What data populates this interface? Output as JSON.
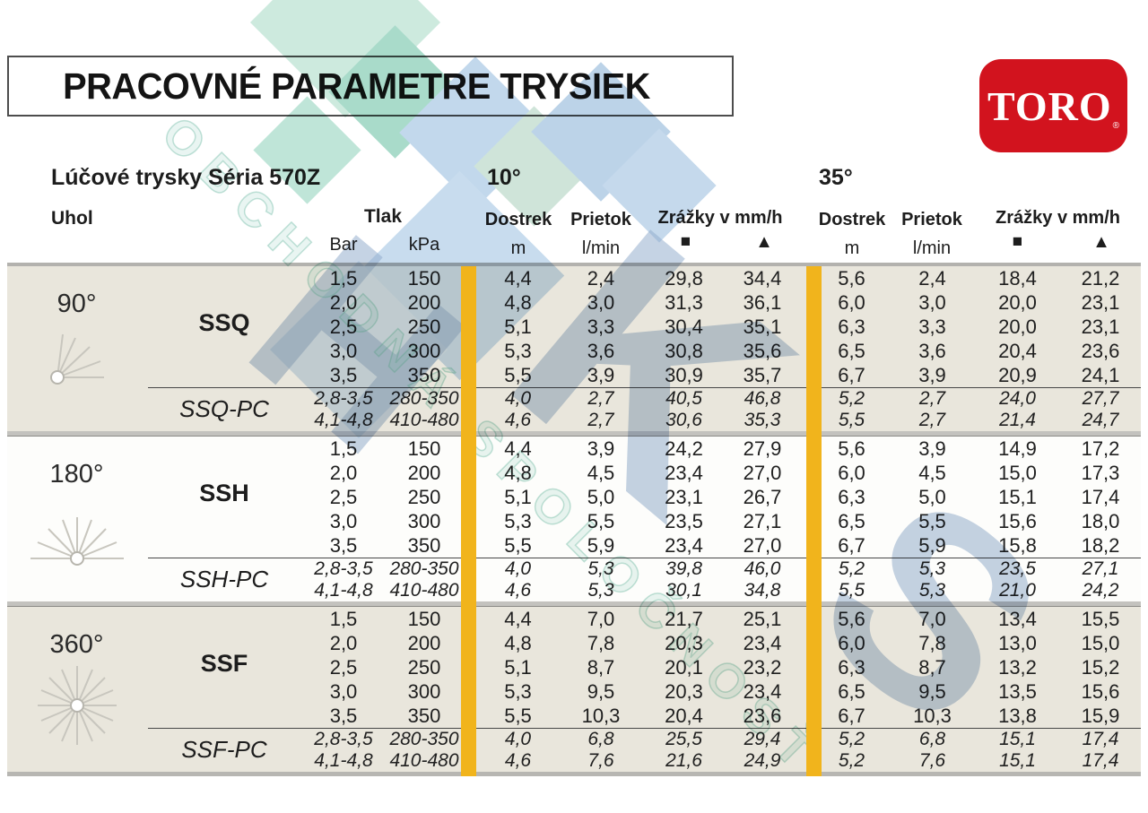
{
  "title": "PRACOVNÉ PARAMETRE TRYSIEK",
  "logo": {
    "text": "TORO",
    "registered": "®",
    "bg_color": "#d2131e"
  },
  "subtitle": "Lúčové trysky Séria 570Z",
  "header": {
    "uhol": "Uhol",
    "tlak": "Tlak",
    "bar": "Bar",
    "kpa": "kPa",
    "group10": "10°",
    "group35": "35°",
    "dostrek": "Dostrek",
    "prietok": "Prietok",
    "zrazky": "Zrážky v mm/h",
    "m": "m",
    "lmin": "l/min",
    "square_symbol": "■",
    "triangle_symbol": "▲"
  },
  "colors": {
    "stripe": "#f1b41c",
    "block_beige": "#e9e6dc",
    "block_white": "#fdfdfb",
    "logo_red": "#d2131e"
  },
  "watermark": {
    "diagonal_text": "OBCHODNÁ SPOLOČNOSŤ",
    "big_letters": [
      "H",
      "K",
      "S"
    ]
  },
  "blocks": [
    {
      "angle": "90°",
      "icon": "spray-90",
      "name": "SSQ",
      "pc_name": "SSQ-PC",
      "rows": [
        {
          "bar": "1,5",
          "kpa": "150",
          "d10": "4,4",
          "p10": "2,4",
          "s10": "29,8",
          "t10": "34,4",
          "d35": "5,6",
          "p35": "2,4",
          "s35": "18,4",
          "t35": "21,2"
        },
        {
          "bar": "2,0",
          "kpa": "200",
          "d10": "4,8",
          "p10": "3,0",
          "s10": "31,3",
          "t10": "36,1",
          "d35": "6,0",
          "p35": "3,0",
          "s35": "20,0",
          "t35": "23,1"
        },
        {
          "bar": "2,5",
          "kpa": "250",
          "d10": "5,1",
          "p10": "3,3",
          "s10": "30,4",
          "t10": "35,1",
          "d35": "6,3",
          "p35": "3,3",
          "s35": "20,0",
          "t35": "23,1"
        },
        {
          "bar": "3,0",
          "kpa": "300",
          "d10": "5,3",
          "p10": "3,6",
          "s10": "30,8",
          "t10": "35,6",
          "d35": "6,5",
          "p35": "3,6",
          "s35": "20,4",
          "t35": "23,6"
        },
        {
          "bar": "3,5",
          "kpa": "350",
          "d10": "5,5",
          "p10": "3,9",
          "s10": "30,9",
          "t10": "35,7",
          "d35": "6,7",
          "p35": "3,9",
          "s35": "20,9",
          "t35": "24,1"
        }
      ],
      "pc_rows": [
        {
          "bar": "2,8-3,5",
          "kpa": "280-350",
          "d10": "4,0",
          "p10": "2,7",
          "s10": "40,5",
          "t10": "46,8",
          "d35": "5,2",
          "p35": "2,7",
          "s35": "24,0",
          "t35": "27,7"
        },
        {
          "bar": "4,1-4,8",
          "kpa": "410-480",
          "d10": "4,6",
          "p10": "2,7",
          "s10": "30,6",
          "t10": "35,3",
          "d35": "5,5",
          "p35": "2,7",
          "s35": "21,4",
          "t35": "24,7"
        }
      ]
    },
    {
      "angle": "180°",
      "icon": "spray-180",
      "name": "SSH",
      "pc_name": "SSH-PC",
      "rows": [
        {
          "bar": "1,5",
          "kpa": "150",
          "d10": "4,4",
          "p10": "3,9",
          "s10": "24,2",
          "t10": "27,9",
          "d35": "5,6",
          "p35": "3,9",
          "s35": "14,9",
          "t35": "17,2"
        },
        {
          "bar": "2,0",
          "kpa": "200",
          "d10": "4,8",
          "p10": "4,5",
          "s10": "23,4",
          "t10": "27,0",
          "d35": "6,0",
          "p35": "4,5",
          "s35": "15,0",
          "t35": "17,3"
        },
        {
          "bar": "2,5",
          "kpa": "250",
          "d10": "5,1",
          "p10": "5,0",
          "s10": "23,1",
          "t10": "26,7",
          "d35": "6,3",
          "p35": "5,0",
          "s35": "15,1",
          "t35": "17,4"
        },
        {
          "bar": "3,0",
          "kpa": "300",
          "d10": "5,3",
          "p10": "5,5",
          "s10": "23,5",
          "t10": "27,1",
          "d35": "6,5",
          "p35": "5,5",
          "s35": "15,6",
          "t35": "18,0"
        },
        {
          "bar": "3,5",
          "kpa": "350",
          "d10": "5,5",
          "p10": "5,9",
          "s10": "23,4",
          "t10": "27,0",
          "d35": "6,7",
          "p35": "5,9",
          "s35": "15,8",
          "t35": "18,2"
        }
      ],
      "pc_rows": [
        {
          "bar": "2,8-3,5",
          "kpa": "280-350",
          "d10": "4,0",
          "p10": "5,3",
          "s10": "39,8",
          "t10": "46,0",
          "d35": "5,2",
          "p35": "5,3",
          "s35": "23,5",
          "t35": "27,1"
        },
        {
          "bar": "4,1-4,8",
          "kpa": "410-480",
          "d10": "4,6",
          "p10": "5,3",
          "s10": "30,1",
          "t10": "34,8",
          "d35": "5,5",
          "p35": "5,3",
          "s35": "21,0",
          "t35": "24,2"
        }
      ]
    },
    {
      "angle": "360°",
      "icon": "spray-360",
      "name": "SSF",
      "pc_name": "SSF-PC",
      "rows": [
        {
          "bar": "1,5",
          "kpa": "150",
          "d10": "4,4",
          "p10": "7,0",
          "s10": "21,7",
          "t10": "25,1",
          "d35": "5,6",
          "p35": "7,0",
          "s35": "13,4",
          "t35": "15,5"
        },
        {
          "bar": "2,0",
          "kpa": "200",
          "d10": "4,8",
          "p10": "7,8",
          "s10": "20,3",
          "t10": "23,4",
          "d35": "6,0",
          "p35": "7,8",
          "s35": "13,0",
          "t35": "15,0"
        },
        {
          "bar": "2,5",
          "kpa": "250",
          "d10": "5,1",
          "p10": "8,7",
          "s10": "20,1",
          "t10": "23,2",
          "d35": "6,3",
          "p35": "8,7",
          "s35": "13,2",
          "t35": "15,2"
        },
        {
          "bar": "3,0",
          "kpa": "300",
          "d10": "5,3",
          "p10": "9,5",
          "s10": "20,3",
          "t10": "23,4",
          "d35": "6,5",
          "p35": "9,5",
          "s35": "13,5",
          "t35": "15,6"
        },
        {
          "bar": "3,5",
          "kpa": "350",
          "d10": "5,5",
          "p10": "10,3",
          "s10": "20,4",
          "t10": "23,6",
          "d35": "6,7",
          "p35": "10,3",
          "s35": "13,8",
          "t35": "15,9"
        }
      ],
      "pc_rows": [
        {
          "bar": "2,8-3,5",
          "kpa": "280-350",
          "d10": "4,0",
          "p10": "6,8",
          "s10": "25,5",
          "t10": "29,4",
          "d35": "5,2",
          "p35": "6,8",
          "s35": "15,1",
          "t35": "17,4"
        },
        {
          "bar": "4,1-4,8",
          "kpa": "410-480",
          "d10": "4,6",
          "p10": "7,6",
          "s10": "21,6",
          "t10": "24,9",
          "d35": "5,2",
          "p35": "7,6",
          "s35": "15,1",
          "t35": "17,4"
        }
      ]
    }
  ]
}
